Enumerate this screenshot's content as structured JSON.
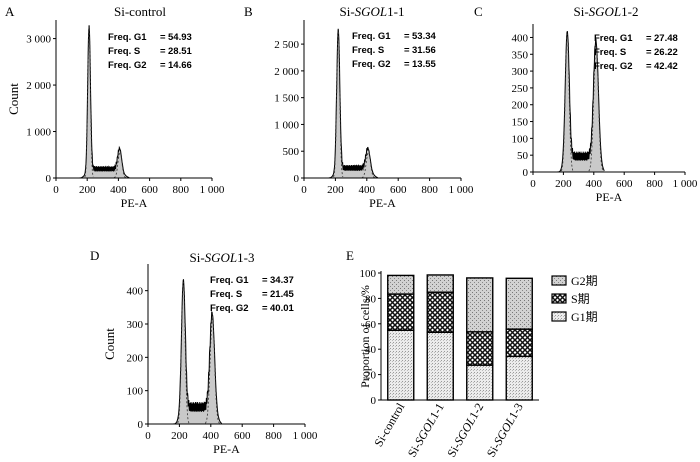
{
  "chart_data": [
    {
      "type": "histogram",
      "panel_label": "A",
      "title_prefix": "Si-control",
      "title_italic": "",
      "title_suffix": "",
      "xlabel": "PE-A",
      "ylabel": "Count",
      "xlim": [
        0,
        1000
      ],
      "ylim": [
        0,
        3400
      ],
      "x_ticks": [
        0,
        200,
        400,
        600,
        800,
        1000
      ],
      "x_tick_labels": [
        "0",
        "200",
        "400",
        "600",
        "800",
        "1 000"
      ],
      "y_ticks": [
        0,
        1000,
        2000,
        3000
      ],
      "y_tick_labels": [
        "0",
        "1 000",
        "2 000",
        "3 000"
      ],
      "freq": [
        {
          "label": "Freq. G1",
          "value": "54.93"
        },
        {
          "label": "Freq. S",
          "value": "28.51"
        },
        {
          "label": "Freq. G2",
          "value": "14.66"
        }
      ],
      "profile": {
        "g1_x": 212,
        "g1_h": 3250,
        "g2_x": 410,
        "g2_h": 560,
        "s_level": 230,
        "g1_w": 9,
        "g2_w": 13
      }
    },
    {
      "type": "histogram",
      "panel_label": "B",
      "title_prefix": "Si-",
      "title_italic": "SGOL",
      "title_suffix": "1-1",
      "xlabel": "PE-A",
      "ylabel": "",
      "xlim": [
        0,
        1000
      ],
      "ylim": [
        0,
        2950
      ],
      "x_ticks": [
        0,
        200,
        400,
        600,
        800,
        1000
      ],
      "x_tick_labels": [
        "0",
        "200",
        "400",
        "600",
        "800",
        "1 000"
      ],
      "y_ticks": [
        0,
        500,
        1000,
        1500,
        2000,
        2500
      ],
      "y_tick_labels": [
        "0",
        "500",
        "1 000",
        "1 500",
        "2 000",
        "2 500"
      ],
      "freq": [
        {
          "label": "Freq. G1",
          "value": "53.34"
        },
        {
          "label": "Freq. S",
          "value": "31.56"
        },
        {
          "label": "Freq. G2",
          "value": "13.55"
        }
      ],
      "profile": {
        "g1_x": 218,
        "g1_h": 2750,
        "g2_x": 410,
        "g2_h": 480,
        "s_level": 220,
        "g1_w": 10,
        "g2_w": 14
      }
    },
    {
      "type": "histogram",
      "panel_label": "C",
      "title_prefix": "Si-",
      "title_italic": "SGOL",
      "title_suffix": "1-2",
      "xlabel": "PE-A",
      "ylabel": "",
      "xlim": [
        0,
        1000
      ],
      "ylim": [
        0,
        440
      ],
      "x_ticks": [
        0,
        200,
        400,
        600,
        800,
        1000
      ],
      "x_tick_labels": [
        "0",
        "200",
        "400",
        "600",
        "800",
        "1 000"
      ],
      "y_ticks": [
        0,
        50,
        100,
        150,
        200,
        250,
        300,
        350,
        400
      ],
      "y_tick_labels": [
        "0",
        "50",
        "100",
        "150",
        "200",
        "250",
        "300",
        "350",
        "400"
      ],
      "freq": [
        {
          "label": "Freq. G1",
          "value": "27.48"
        },
        {
          "label": "Freq. S",
          "value": "26.22"
        },
        {
          "label": "Freq. G2",
          "value": "42.42"
        }
      ],
      "profile": {
        "g1_x": 225,
        "g1_h": 410,
        "g2_x": 415,
        "g2_h": 375,
        "s_level": 55,
        "g1_w": 13,
        "g2_w": 16
      }
    },
    {
      "type": "histogram",
      "panel_label": "D",
      "title_prefix": "Si-",
      "title_italic": "SGOL",
      "title_suffix": "1-3",
      "xlabel": "PE-A",
      "ylabel": "Count",
      "xlim": [
        0,
        1000
      ],
      "ylim": [
        0,
        480
      ],
      "x_ticks": [
        0,
        200,
        400,
        600,
        800,
        1000
      ],
      "x_tick_labels": [
        "0",
        "200",
        "400",
        "600",
        "800",
        "1 000"
      ],
      "y_ticks": [
        0,
        100,
        200,
        300,
        400
      ],
      "y_tick_labels": [
        "0",
        "100",
        "200",
        "300",
        "400"
      ],
      "freq": [
        {
          "label": "Freq. G1",
          "value": "34.37"
        },
        {
          "label": "Freq. S",
          "value": "21.45"
        },
        {
          "label": "Freq. G2",
          "value": "40.01"
        }
      ],
      "profile": {
        "g1_x": 225,
        "g1_h": 425,
        "g2_x": 410,
        "g2_h": 315,
        "s_level": 60,
        "g1_w": 12,
        "g2_w": 15
      }
    },
    {
      "type": "bar",
      "stacked": true,
      "panel_label": "E",
      "ylabel": "Proportion of cells/%",
      "ylim": [
        0,
        100
      ],
      "y_ticks": [
        0,
        20,
        40,
        60,
        80,
        100
      ],
      "y_tick_labels": [
        "0",
        "20",
        "40",
        "60",
        "80",
        "100"
      ],
      "categories": [
        {
          "prefix": "Si-control",
          "italic": "",
          "suffix": ""
        },
        {
          "prefix": "Si-",
          "italic": "SGOL",
          "suffix": "1-1"
        },
        {
          "prefix": "Si-",
          "italic": "SGOL",
          "suffix": "1-2"
        },
        {
          "prefix": "Si-",
          "italic": "SGOL",
          "suffix": "1-3"
        }
      ],
      "series": [
        {
          "name": "G1期",
          "values": [
            54.93,
            53.34,
            27.48,
            34.37
          ]
        },
        {
          "name": "S期",
          "values": [
            28.51,
            31.56,
            26.22,
            21.45
          ]
        },
        {
          "name": "G2期",
          "values": [
            14.66,
            13.55,
            42.42,
            40.01
          ]
        }
      ],
      "legend_order": [
        "G2期",
        "S期",
        "G1期"
      ]
    }
  ]
}
